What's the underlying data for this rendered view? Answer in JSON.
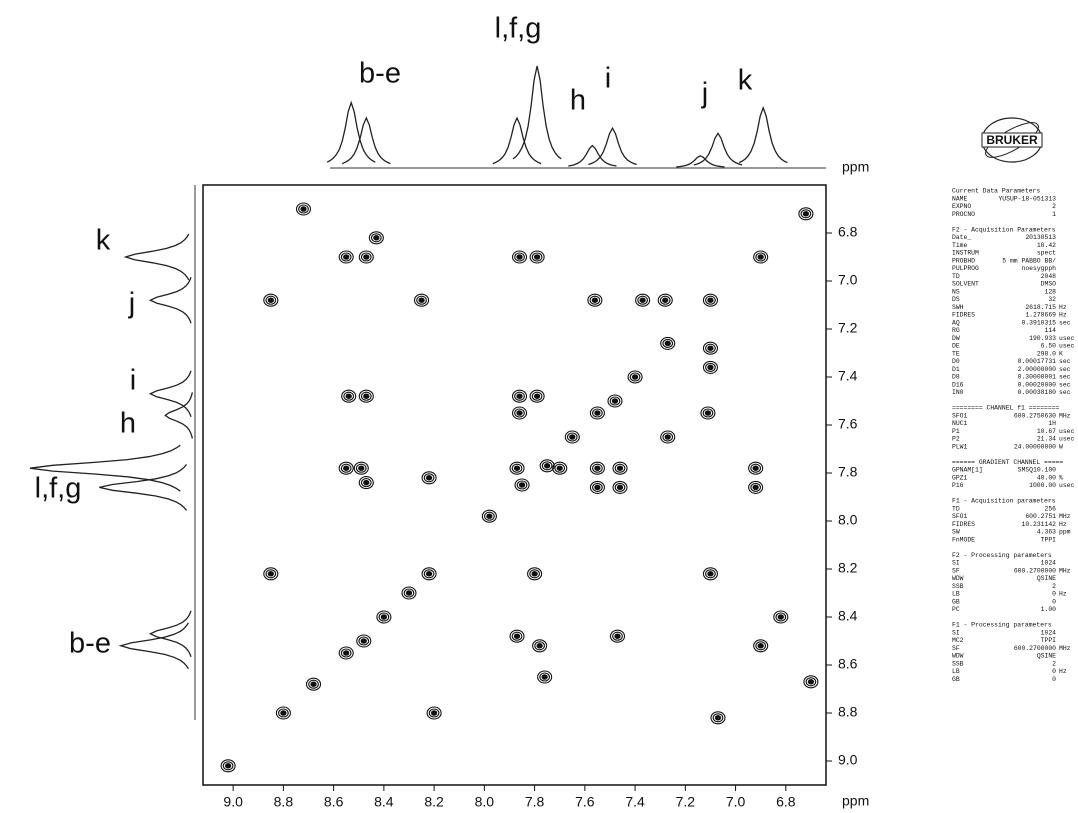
{
  "chart_data": {
    "type": "contour",
    "x_label": "ppm",
    "y_label": "ppm",
    "xlim": [
      9.12,
      6.64
    ],
    "ylim": [
      6.6,
      9.1
    ],
    "xticks": [
      {
        "value": 9,
        "label": "9.0"
      },
      8.8,
      8.6,
      8.4,
      8.2,
      {
        "value": 8,
        "label": "8.0"
      },
      7.8,
      7.6,
      7.4,
      7.2,
      {
        "value": 7,
        "label": "7.0"
      },
      6.8
    ],
    "yticks": [
      6.8,
      {
        "value": 7,
        "label": "7.0"
      },
      7.2,
      7.4,
      7.6,
      7.8,
      {
        "value": 8,
        "label": "8.0"
      },
      8.2,
      8.4,
      8.6,
      8.8,
      {
        "value": 9,
        "label": "9.0"
      }
    ],
    "peaks": {
      "x": [
        6.72,
        6.9,
        7.1,
        7.27,
        7.4,
        7.48,
        7.55,
        7.65,
        7.75,
        7.85,
        7.98,
        8.22,
        8.3,
        8.4,
        8.48,
        8.55,
        8.68,
        8.8,
        9.02,
        8.55,
        8.47,
        8.43,
        8.72,
        7.86,
        7.79,
        8.85,
        8.25,
        7.56,
        7.37,
        7.28,
        7.1,
        7.1,
        8.54,
        8.47,
        7.86,
        7.79,
        7.11,
        7.86,
        7.27,
        8.55,
        8.49,
        8.47,
        7.87,
        7.7,
        7.55,
        7.55,
        7.46,
        7.46,
        6.92,
        6.92,
        8.22,
        8.85,
        7.8,
        7.1,
        7.87,
        7.78,
        7.47,
        6.9,
        6.82,
        7.76,
        8.2,
        7.07,
        6.7
      ],
      "values": [
        6.72,
        6.9,
        7.08,
        7.26,
        7.4,
        7.5,
        7.55,
        7.65,
        7.77,
        7.85,
        7.98,
        8.22,
        8.3,
        8.4,
        8.5,
        8.55,
        8.68,
        8.8,
        9.02,
        6.9,
        6.9,
        6.82,
        6.7,
        6.9,
        6.9,
        7.08,
        7.08,
        7.08,
        7.08,
        7.08,
        7.28,
        7.36,
        7.48,
        7.48,
        7.48,
        7.48,
        7.55,
        7.55,
        7.65,
        7.78,
        7.78,
        7.84,
        7.78,
        7.78,
        7.78,
        7.86,
        7.86,
        7.78,
        7.78,
        7.86,
        7.82,
        8.22,
        8.22,
        8.22,
        8.48,
        8.52,
        8.48,
        8.52,
        8.4,
        8.65,
        8.8,
        8.82,
        8.67
      ]
    },
    "f2_projection": {
      "x": [
        8.53,
        8.47,
        7.87,
        7.79,
        7.57,
        7.49,
        7.14,
        7.07,
        6.89
      ],
      "values": [
        64,
        49,
        49,
        100,
        22,
        39,
        12,
        34,
        59
      ]
    },
    "f1_projection": {
      "x": [
        6.9,
        7.08,
        7.47,
        7.56,
        7.78,
        7.86,
        8.47,
        8.52
      ],
      "values": [
        42,
        27,
        27,
        18,
        100,
        58,
        27,
        45
      ]
    },
    "peak_labels": [
      "b-e",
      "l,f,g",
      "h",
      "i",
      "j",
      "k"
    ]
  },
  "logo": "BRUKER",
  "parameter_block": [
    {
      "heading": "Current Data Parameters",
      "rows": [
        [
          "NAME",
          "YUSUP-18-051313"
        ],
        [
          "EXPNO",
          "2"
        ],
        [
          "PROCNO",
          "1"
        ]
      ]
    },
    {
      "heading": "F2 - Acquisition Parameters",
      "rows": [
        [
          "Date_",
          "20130513"
        ],
        [
          "Time",
          "10.42"
        ],
        [
          "INSTRUM",
          "spect"
        ],
        [
          "PROBHD",
          "5 mm PABBO BB/"
        ],
        [
          "PULPROG",
          "noesygpph"
        ],
        [
          "TD",
          "2048"
        ],
        [
          "SOLVENT",
          "DMSO"
        ],
        [
          "NS",
          "128"
        ],
        [
          "DS",
          "32"
        ],
        [
          "SWH",
          "2618.715",
          "Hz"
        ],
        [
          "FIDRES",
          "1.278669",
          "Hz"
        ],
        [
          "AQ",
          "0.3910315",
          "sec"
        ],
        [
          "RG",
          "114"
        ],
        [
          "DW",
          "190.933",
          "usec"
        ],
        [
          "DE",
          "6.50",
          "usec"
        ],
        [
          "TE",
          "298.0",
          "K"
        ],
        [
          "D0",
          "0.00017731",
          "sec"
        ],
        [
          "D1",
          "2.00000000",
          "sec"
        ],
        [
          "D8",
          "0.30000001",
          "sec"
        ],
        [
          "D16",
          "0.00020000",
          "sec"
        ],
        [
          "IN0",
          "0.00038180",
          "sec"
        ]
      ]
    },
    {
      "heading": "======== CHANNEL f1 ========",
      "rows": [
        [
          "SFO1",
          "600.2750630",
          "MHz"
        ],
        [
          "NUC1",
          "1H"
        ],
        [
          "P1",
          "10.67",
          "usec"
        ],
        [
          "P2",
          "21.34",
          "usec"
        ],
        [
          "PLW1",
          "24.00000000",
          "W"
        ]
      ]
    },
    {
      "heading": "====== GRADIENT CHANNEL =====",
      "rows": [
        [
          "GPNAM[1]",
          "SMSQ10.100"
        ],
        [
          "GPZ1",
          "40.00",
          "%"
        ],
        [
          "P16",
          "1000.00",
          "usec"
        ]
      ]
    },
    {
      "heading": "F1 - Acquisition parameters",
      "rows": [
        [
          "TD",
          "256"
        ],
        [
          "SFO1",
          "600.2751",
          "MHz"
        ],
        [
          "FIDRES",
          "10.231142",
          "Hz"
        ],
        [
          "SW",
          "4.363",
          "ppm"
        ],
        [
          "FnMODE",
          "TPPI"
        ]
      ]
    },
    {
      "heading": "F2 - Processing parameters",
      "rows": [
        [
          "SI",
          "1024"
        ],
        [
          "SF",
          "600.2700000",
          "MHz"
        ],
        [
          "WDW",
          "QSINE"
        ],
        [
          "SSB",
          "2"
        ],
        [
          "LB",
          "0",
          "Hz"
        ],
        [
          "GB",
          "0"
        ],
        [
          "PC",
          "1.00"
        ]
      ]
    },
    {
      "heading": "F1 - Processing parameters",
      "rows": [
        [
          "SI",
          "1024"
        ],
        [
          "MC2",
          "TPPI"
        ],
        [
          "SF",
          "600.2700000",
          "MHz"
        ],
        [
          "WDW",
          "QSINE"
        ],
        [
          "SSB",
          "2"
        ],
        [
          "LB",
          "0",
          "Hz"
        ],
        [
          "GB",
          "0"
        ]
      ]
    }
  ]
}
